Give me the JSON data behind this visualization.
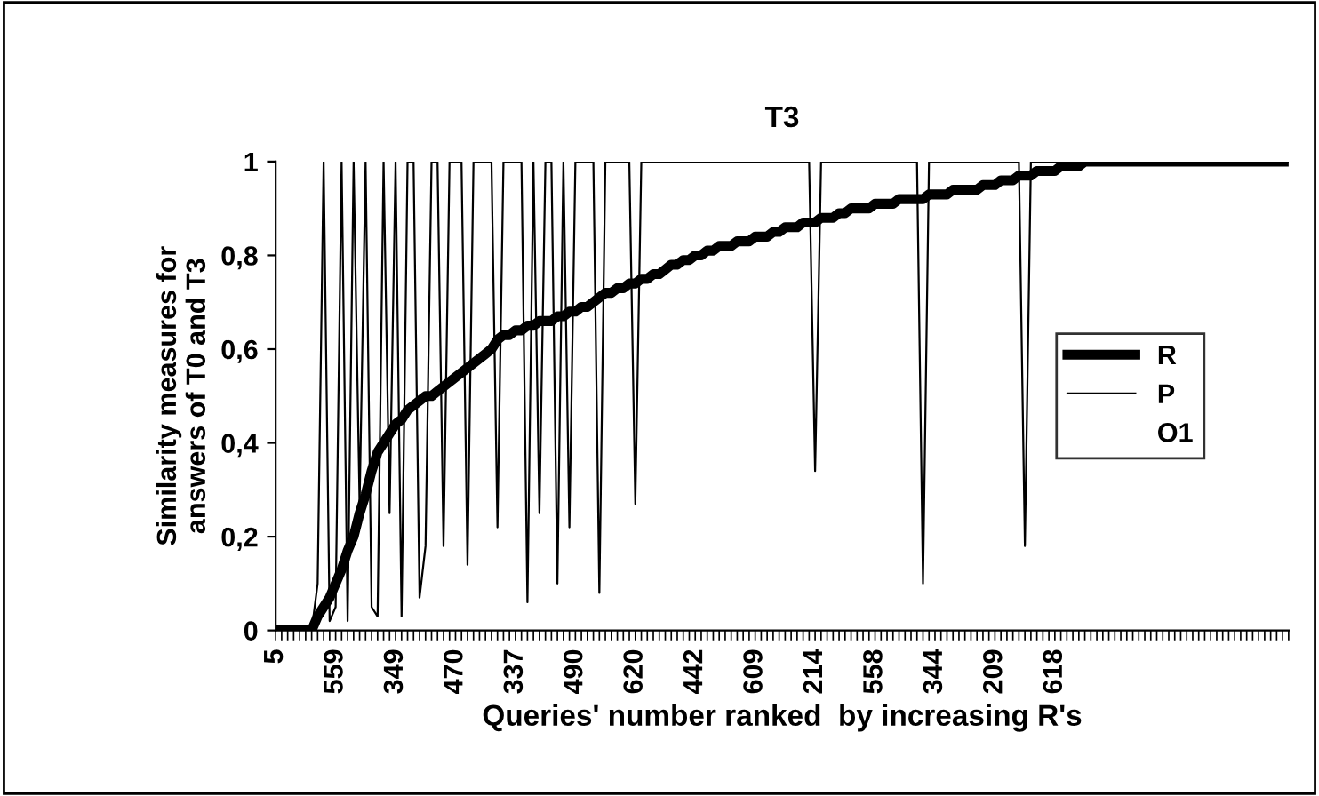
{
  "chart_data": {
    "type": "line",
    "title": "T3",
    "xlabel": "Queries' number ranked  by increasing R's",
    "ylabel": "Similarity measures for\nanswers of T0 and T3",
    "categories": [
      "5",
      null,
      null,
      null,
      null,
      null,
      null,
      null,
      null,
      null,
      "559",
      null,
      null,
      null,
      null,
      null,
      null,
      null,
      null,
      null,
      "349",
      null,
      null,
      null,
      null,
      null,
      null,
      null,
      null,
      null,
      "470",
      null,
      null,
      null,
      null,
      null,
      null,
      null,
      null,
      null,
      "337",
      null,
      null,
      null,
      null,
      null,
      null,
      null,
      null,
      null,
      "490",
      null,
      null,
      null,
      null,
      null,
      null,
      null,
      null,
      null,
      "620",
      null,
      null,
      null,
      null,
      null,
      null,
      null,
      null,
      null,
      "442",
      null,
      null,
      null,
      null,
      null,
      null,
      null,
      null,
      null,
      "609",
      null,
      null,
      null,
      null,
      null,
      null,
      null,
      null,
      null,
      "214",
      null,
      null,
      null,
      null,
      null,
      null,
      null,
      null,
      null,
      "558",
      null,
      null,
      null,
      null,
      null,
      null,
      null,
      null,
      null,
      "344",
      null,
      null,
      null,
      null,
      null,
      null,
      null,
      null,
      null,
      "209",
      null,
      null,
      null,
      null,
      null,
      null,
      null,
      null,
      null,
      "618",
      null,
      null,
      null,
      null,
      null,
      null,
      null,
      null,
      null,
      null,
      null,
      null,
      null,
      null,
      null,
      null,
      null,
      null,
      null,
      null,
      null,
      null,
      null,
      null,
      null,
      null,
      null,
      null,
      null,
      null,
      null,
      null,
      null,
      null,
      null,
      null,
      null,
      null,
      null
    ],
    "series": [
      {
        "name": "R",
        "color": "#000000",
        "values": [
          0,
          0,
          0,
          0,
          0,
          0,
          0,
          0.03,
          0.05,
          0.07,
          0.1,
          0.13,
          0.17,
          0.2,
          0.25,
          0.29,
          0.34,
          0.38,
          0.4,
          0.42,
          0.44,
          0.45,
          0.47,
          0.48,
          0.49,
          0.5,
          0.5,
          0.51,
          0.52,
          0.53,
          0.54,
          0.55,
          0.56,
          0.57,
          0.58,
          0.59,
          0.6,
          0.62,
          0.63,
          0.63,
          0.64,
          0.64,
          0.65,
          0.65,
          0.66,
          0.66,
          0.66,
          0.67,
          0.67,
          0.68,
          0.68,
          0.69,
          0.69,
          0.7,
          0.71,
          0.72,
          0.72,
          0.73,
          0.73,
          0.74,
          0.74,
          0.75,
          0.75,
          0.76,
          0.76,
          0.77,
          0.78,
          0.78,
          0.79,
          0.79,
          0.8,
          0.8,
          0.81,
          0.81,
          0.82,
          0.82,
          0.82,
          0.83,
          0.83,
          0.83,
          0.84,
          0.84,
          0.84,
          0.85,
          0.85,
          0.86,
          0.86,
          0.86,
          0.87,
          0.87,
          0.87,
          0.88,
          0.88,
          0.88,
          0.89,
          0.89,
          0.9,
          0.9,
          0.9,
          0.9,
          0.91,
          0.91,
          0.91,
          0.91,
          0.92,
          0.92,
          0.92,
          0.92,
          0.92,
          0.93,
          0.93,
          0.93,
          0.93,
          0.94,
          0.94,
          0.94,
          0.94,
          0.94,
          0.95,
          0.95,
          0.95,
          0.96,
          0.96,
          0.96,
          0.97,
          0.97,
          0.97,
          0.98,
          0.98,
          0.98,
          0.98,
          0.99,
          0.99,
          0.99,
          0.99,
          1,
          1,
          1,
          1,
          1,
          1,
          1,
          1,
          1,
          1,
          1,
          1,
          1,
          1,
          1,
          1,
          1,
          1,
          1,
          1,
          1,
          1,
          1,
          1,
          1,
          1,
          1,
          1,
          1,
          1,
          1,
          1,
          1,
          1,
          1
        ]
      },
      {
        "name": "P",
        "color": "#000000",
        "values": [
          0,
          0,
          0,
          0,
          0,
          0,
          0,
          0.1,
          1,
          0.02,
          0.05,
          1,
          0.02,
          1,
          0.27,
          1,
          0.05,
          0.03,
          1,
          0.25,
          1,
          0.03,
          1,
          1,
          0.07,
          0.18,
          1,
          1,
          0.18,
          1,
          1,
          1,
          0.14,
          1,
          1,
          1,
          1,
          0.22,
          1,
          1,
          1,
          1,
          0.06,
          1,
          0.25,
          1,
          1,
          0.1,
          1,
          0.22,
          1,
          1,
          1,
          1,
          0.08,
          1,
          1,
          1,
          1,
          1,
          0.27,
          1,
          1,
          1,
          1,
          1,
          1,
          1,
          1,
          1,
          1,
          1,
          1,
          1,
          1,
          1,
          1,
          1,
          1,
          1,
          1,
          1,
          1,
          1,
          1,
          1,
          1,
          1,
          1,
          1,
          0.34,
          1,
          1,
          1,
          1,
          1,
          1,
          1,
          1,
          1,
          1,
          1,
          1,
          1,
          1,
          1,
          1,
          1,
          0.1,
          1,
          1,
          1,
          1,
          1,
          1,
          1,
          1,
          1,
          1,
          1,
          1,
          1,
          1,
          1,
          1,
          0.18,
          1,
          1,
          1,
          1,
          1,
          1,
          1,
          1,
          1,
          1,
          1,
          1,
          1,
          1,
          1,
          1,
          1,
          1,
          1,
          1,
          1,
          1,
          1,
          1,
          1,
          1,
          1,
          1,
          1,
          1,
          1,
          1,
          1,
          1,
          1,
          1,
          1,
          1,
          1,
          1,
          1,
          1,
          1,
          1
        ]
      },
      {
        "name": "O1",
        "values": [
          null,
          null,
          null,
          null,
          null,
          null,
          null,
          null,
          null,
          null,
          null,
          null,
          null,
          null,
          null,
          null,
          null,
          null,
          null,
          null,
          null,
          null,
          null,
          null,
          null,
          null,
          null,
          null,
          null,
          null,
          null,
          null,
          null,
          null,
          null,
          null,
          null,
          null,
          null,
          null,
          null,
          null,
          null,
          null,
          null,
          null,
          null,
          null,
          null,
          null,
          null,
          null,
          null,
          null,
          null,
          null,
          null,
          null,
          null,
          null,
          null,
          null,
          null,
          null,
          null,
          null,
          null,
          null,
          null,
          null,
          null,
          null,
          null,
          null,
          null,
          null,
          null,
          null,
          null,
          null,
          null,
          null,
          null,
          null,
          null,
          null,
          null,
          null,
          null,
          null,
          null,
          null,
          null,
          null,
          null,
          null,
          null,
          null,
          null,
          null,
          null,
          null,
          null,
          null,
          null,
          null,
          null,
          null,
          null,
          null,
          null,
          null,
          null,
          null,
          null,
          null,
          null,
          null,
          null,
          null,
          null,
          null,
          null,
          null,
          null,
          null,
          null,
          null,
          null,
          null,
          null,
          null,
          null,
          null,
          null,
          null,
          null,
          null,
          null,
          null,
          null,
          null,
          null,
          null,
          null,
          null,
          null,
          null,
          null,
          null,
          null,
          null,
          null,
          null,
          null,
          null,
          null,
          null,
          null,
          null,
          null,
          null,
          null,
          null,
          null,
          null,
          null,
          null,
          null,
          null
        ]
      }
    ],
    "ylim": [
      0,
      1
    ],
    "yticks": [
      0,
      {
        "value": 0.2,
        "label": "0,2"
      },
      {
        "value": 0.4,
        "label": "0,4"
      },
      {
        "value": 0.6,
        "label": "0,6"
      },
      {
        "value": 0.8,
        "label": "0,8"
      },
      1
    ],
    "grid": false,
    "legend": "right",
    "marker": "none",
    "line_style": "solid"
  }
}
